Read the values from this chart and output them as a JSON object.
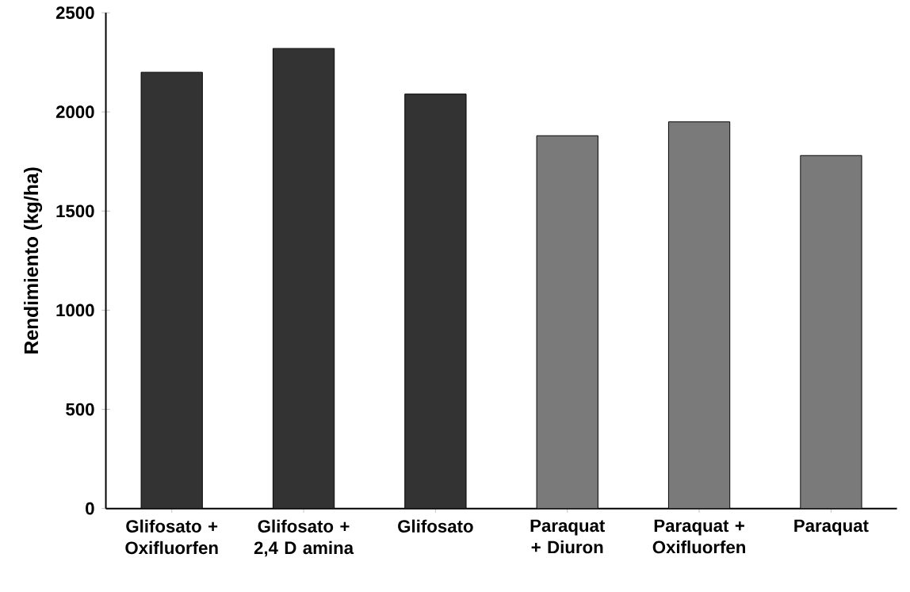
{
  "chart_data": {
    "type": "bar",
    "categories": [
      "Glifosato + Oxifluorfen",
      "Glifosato + 2,4 D amina",
      "Glifosato",
      "Paraquat + Diuron",
      "Paraquat + Oxifluorfen",
      "Paraquat"
    ],
    "values": [
      2200,
      2320,
      2090,
      1880,
      1950,
      1780
    ],
    "colors": [
      "#333333",
      "#333333",
      "#333333",
      "#7a7a7a",
      "#7a7a7a",
      "#7a7a7a"
    ],
    "ylabel": "Rendimiento (kg/ha)",
    "ylim": [
      0,
      2500
    ],
    "yticks": [
      0,
      500,
      1000,
      1500,
      2000,
      2500
    ],
    "grid": false
  }
}
